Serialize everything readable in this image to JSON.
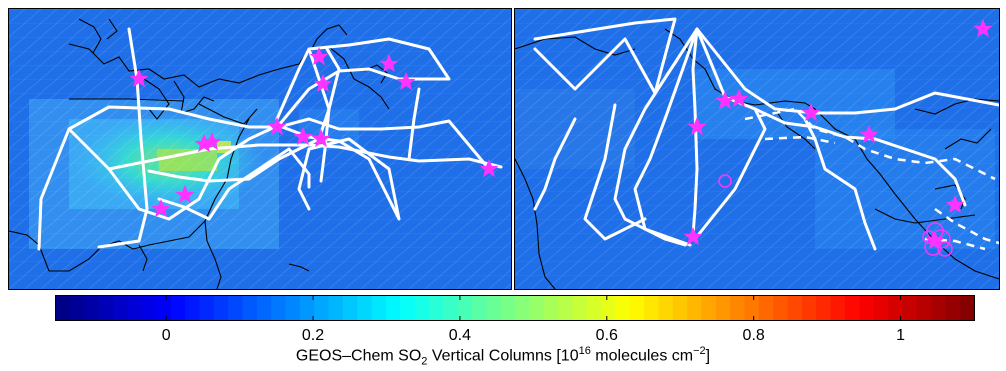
{
  "colorbar": {
    "label_prefix": "GEOS–Chem SO",
    "label_sub": "2",
    "label_mid": " Vertical Columns [10",
    "label_sup_exp": "16",
    "label_mid2": " molecules cm",
    "label_sup_unit": "−2",
    "label_end": "]",
    "min": -0.15,
    "max": 1.1,
    "ticks": [
      {
        "value": 0,
        "label": "0"
      },
      {
        "value": 0.2,
        "label": "0.2"
      },
      {
        "value": 0.4,
        "label": "0.4"
      },
      {
        "value": 0.6,
        "label": "0.6"
      },
      {
        "value": 0.8,
        "label": "0.8"
      },
      {
        "value": 1,
        "label": "1"
      }
    ],
    "colormap": "jet"
  },
  "colors": {
    "background_field": "#1f6fe8",
    "flight_track": "#ffffff",
    "star_marker": "#ff33ff",
    "circle_marker": "#ff33ff",
    "coastline": "#000000"
  },
  "map_left": {
    "region": "Eastern United States and Western Atlantic",
    "marker": "star"
  },
  "map_right": {
    "region": "Gulf of Mexico and Central America",
    "marker": "star-and-circle"
  }
}
